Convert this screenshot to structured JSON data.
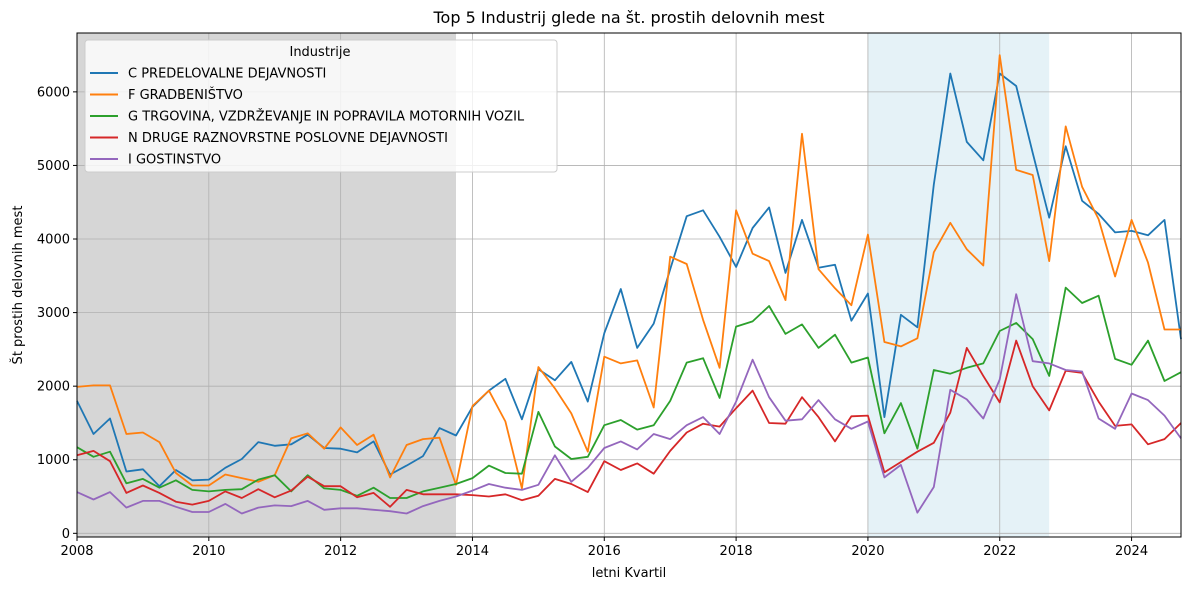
{
  "chart_data": {
    "type": "line",
    "title": "Top 5 Industrij glede na št. prostih delovnih mest",
    "xlabel": "letni Kvartil",
    "ylabel": "Št prostih delovnih mest",
    "xlim": [
      2008.0,
      2024.75
    ],
    "ylim": [
      -50,
      6800
    ],
    "x_ticks": [
      2008,
      2010,
      2012,
      2014,
      2016,
      2018,
      2020,
      2022,
      2024
    ],
    "y_ticks": [
      0,
      1000,
      2000,
      3000,
      4000,
      5000,
      6000
    ],
    "grid": true,
    "legend": {
      "title": "Industrije",
      "placement": "top-left"
    },
    "shaded_regions": [
      {
        "from": 2008.0,
        "to": 2013.75,
        "color": "#d6d6d6"
      },
      {
        "from": 2020.0,
        "to": 2022.75,
        "color": "#add8e6"
      }
    ],
    "x_start": 2008.0,
    "x_step": 0.25,
    "series": [
      {
        "name": "C PREDELOVALNE DEJAVNOSTI",
        "color": "#1f77b4",
        "values": [
          1800,
          1350,
          1560,
          840,
          870,
          640,
          860,
          720,
          730,
          890,
          1010,
          1240,
          1190,
          1210,
          1340,
          1160,
          1150,
          1100,
          1250,
          800,
          920,
          1050,
          1430,
          1330,
          1720,
          1940,
          2100,
          1550,
          2230,
          2080,
          2330,
          1790,
          2720,
          3320,
          2520,
          2850,
          3590,
          4310,
          4390,
          4030,
          3620,
          4150,
          4430,
          3540,
          4260,
          3610,
          3650,
          2890,
          3260,
          1580,
          2970,
          2800,
          4740,
          6250,
          5320,
          5070,
          6250,
          6080,
          5170,
          4290,
          5260,
          4520,
          4340,
          4090,
          4110,
          4050,
          4260,
          2640
        ]
      },
      {
        "name": "F GRADBENIŠTVO",
        "color": "#ff7f0e",
        "values": [
          1990,
          2010,
          2010,
          1350,
          1370,
          1240,
          820,
          650,
          650,
          800,
          750,
          700,
          790,
          1290,
          1360,
          1150,
          1440,
          1200,
          1340,
          760,
          1200,
          1280,
          1300,
          660,
          1730,
          1940,
          1520,
          610,
          2260,
          1970,
          1630,
          1110,
          2400,
          2310,
          2350,
          1710,
          3760,
          3660,
          2900,
          2250,
          4390,
          3800,
          3700,
          3170,
          5430,
          3590,
          3330,
          3100,
          4060,
          2600,
          2540,
          2650,
          3820,
          4220,
          3860,
          3640,
          6500,
          4940,
          4870,
          3700,
          5530,
          4710,
          4270,
          3490,
          4260,
          3680,
          2770,
          2770
        ]
      },
      {
        "name": "G TRGOVINA, VZDRŽEVANJE IN POPRAVILA MOTORNIH VOZIL",
        "color": "#2ca02c",
        "values": [
          1170,
          1040,
          1110,
          680,
          740,
          620,
          720,
          590,
          570,
          590,
          600,
          730,
          790,
          570,
          790,
          610,
          590,
          510,
          620,
          480,
          480,
          570,
          620,
          670,
          750,
          920,
          820,
          810,
          1650,
          1180,
          1010,
          1040,
          1470,
          1540,
          1410,
          1470,
          1800,
          2320,
          2380,
          1840,
          2810,
          2880,
          3090,
          2710,
          2840,
          2520,
          2700,
          2320,
          2390,
          1360,
          1770,
          1150,
          2220,
          2170,
          2250,
          2310,
          2750,
          2860,
          2640,
          2140,
          3340,
          3130,
          3230,
          2370,
          2290,
          2620,
          2070,
          2190
        ]
      },
      {
        "name": "N DRUGE RAZNOVRSTNE POSLOVNE DEJAVNOSTI",
        "color": "#d62728",
        "values": [
          1060,
          1120,
          980,
          550,
          650,
          550,
          430,
          390,
          440,
          570,
          480,
          600,
          490,
          580,
          770,
          640,
          640,
          490,
          550,
          360,
          590,
          530,
          530,
          530,
          520,
          500,
          530,
          450,
          510,
          740,
          670,
          560,
          980,
          860,
          950,
          810,
          1120,
          1370,
          1490,
          1450,
          1700,
          1940,
          1500,
          1490,
          1850,
          1580,
          1250,
          1590,
          1600,
          830,
          970,
          1110,
          1230,
          1640,
          2520,
          2140,
          1780,
          2620,
          2000,
          1670,
          2210,
          2180,
          1790,
          1460,
          1480,
          1210,
          1280,
          1500
        ]
      },
      {
        "name": "I GOSTINSTVO",
        "color": "#9467bd",
        "values": [
          560,
          460,
          560,
          350,
          440,
          440,
          360,
          290,
          290,
          400,
          270,
          350,
          380,
          370,
          440,
          320,
          340,
          340,
          320,
          300,
          270,
          370,
          440,
          500,
          580,
          670,
          620,
          590,
          660,
          1060,
          700,
          890,
          1160,
          1250,
          1140,
          1350,
          1280,
          1470,
          1580,
          1350,
          1790,
          2360,
          1850,
          1530,
          1550,
          1810,
          1550,
          1420,
          1520,
          760,
          930,
          280,
          630,
          1950,
          1820,
          1560,
          2090,
          3250,
          2340,
          2310,
          2220,
          2200,
          1560,
          1420,
          1900,
          1810,
          1600,
          1290
        ]
      }
    ]
  }
}
